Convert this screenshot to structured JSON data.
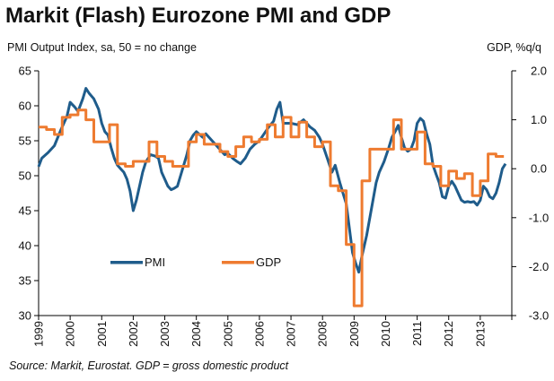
{
  "chart_data": {
    "type": "line",
    "title": "Markit (Flash) Eurozone PMI and GDP",
    "y_left_label": "PMI Output  Index, sa, 50 = no change",
    "y_right_label": "GDP, %q/q",
    "source": "Source: Markit, Eurostat. GDP = gross domestic product",
    "x_ticks": [
      "1999",
      "2000",
      "2001",
      "2002",
      "2003",
      "2004",
      "2005",
      "2006",
      "2007",
      "2008",
      "2009",
      "2010",
      "2011",
      "2012",
      "2013"
    ],
    "y_left_ticks": [
      "65",
      "60",
      "55",
      "50",
      "45",
      "40",
      "35",
      "30"
    ],
    "y_left_range": [
      30,
      65
    ],
    "y_right_ticks": [
      "2.0",
      "1.0",
      "0.0",
      "-1.0",
      "-2.0",
      "-3.0"
    ],
    "y_right_range": [
      -3.0,
      2.0
    ],
    "grid": false,
    "legend_position": "lower-left",
    "series": [
      {
        "name": "PMI",
        "axis": "left",
        "color": "#1F5C8B",
        "points": [
          [
            1999.0,
            51.3
          ],
          [
            1999.1,
            52.5
          ],
          [
            1999.3,
            53.3
          ],
          [
            1999.5,
            54.3
          ],
          [
            1999.7,
            56.5
          ],
          [
            1999.9,
            58.5
          ],
          [
            2000.0,
            60.5
          ],
          [
            2000.15,
            59.8
          ],
          [
            2000.25,
            59.2
          ],
          [
            2000.4,
            61.0
          ],
          [
            2000.5,
            62.5
          ],
          [
            2000.6,
            61.8
          ],
          [
            2000.75,
            61.0
          ],
          [
            2000.9,
            59.5
          ],
          [
            2001.0,
            57.5
          ],
          [
            2001.1,
            56.3
          ],
          [
            2001.2,
            55.8
          ],
          [
            2001.3,
            54.0
          ],
          [
            2001.4,
            52.5
          ],
          [
            2001.5,
            51.5
          ],
          [
            2001.6,
            51.0
          ],
          [
            2001.7,
            50.5
          ],
          [
            2001.8,
            49.5
          ],
          [
            2001.9,
            47.8
          ],
          [
            2002.0,
            45.0
          ],
          [
            2002.1,
            46.5
          ],
          [
            2002.2,
            48.5
          ],
          [
            2002.3,
            50.5
          ],
          [
            2002.4,
            52.0
          ],
          [
            2002.55,
            53.0
          ],
          [
            2002.7,
            52.8
          ],
          [
            2002.8,
            52.5
          ],
          [
            2002.9,
            50.5
          ],
          [
            2003.0,
            49.5
          ],
          [
            2003.1,
            48.5
          ],
          [
            2003.2,
            48.0
          ],
          [
            2003.3,
            48.2
          ],
          [
            2003.4,
            48.5
          ],
          [
            2003.5,
            50.0
          ],
          [
            2003.6,
            51.5
          ],
          [
            2003.7,
            53.0
          ],
          [
            2003.8,
            55.0
          ],
          [
            2003.9,
            55.8
          ],
          [
            2004.0,
            56.3
          ],
          [
            2004.2,
            55.5
          ],
          [
            2004.3,
            56.0
          ],
          [
            2004.5,
            55.0
          ],
          [
            2004.6,
            54.5
          ],
          [
            2004.8,
            53.5
          ],
          [
            2004.9,
            53.0
          ],
          [
            2005.0,
            53.2
          ],
          [
            2005.15,
            52.5
          ],
          [
            2005.3,
            52.0
          ],
          [
            2005.4,
            51.7
          ],
          [
            2005.55,
            52.5
          ],
          [
            2005.7,
            53.8
          ],
          [
            2005.85,
            54.5
          ],
          [
            2006.0,
            55.0
          ],
          [
            2006.15,
            56.0
          ],
          [
            2006.3,
            57.0
          ],
          [
            2006.45,
            57.8
          ],
          [
            2006.55,
            59.5
          ],
          [
            2006.65,
            60.5
          ],
          [
            2006.75,
            57.5
          ],
          [
            2006.9,
            57.5
          ],
          [
            2007.0,
            57.5
          ],
          [
            2007.2,
            57.3
          ],
          [
            2007.4,
            58.0
          ],
          [
            2007.6,
            57.0
          ],
          [
            2007.75,
            56.5
          ],
          [
            2007.9,
            55.5
          ],
          [
            2008.0,
            54.5
          ],
          [
            2008.15,
            52.5
          ],
          [
            2008.3,
            50.5
          ],
          [
            2008.4,
            51.5
          ],
          [
            2008.55,
            49.0
          ],
          [
            2008.65,
            47.5
          ],
          [
            2008.75,
            46.0
          ],
          [
            2008.85,
            42.5
          ],
          [
            2008.95,
            39.0
          ],
          [
            2009.05,
            37.5
          ],
          [
            2009.15,
            36.2
          ],
          [
            2009.25,
            38.5
          ],
          [
            2009.4,
            41.5
          ],
          [
            2009.5,
            44.0
          ],
          [
            2009.6,
            46.5
          ],
          [
            2009.7,
            49.0
          ],
          [
            2009.8,
            50.5
          ],
          [
            2009.95,
            52.0
          ],
          [
            2010.1,
            54.0
          ],
          [
            2010.2,
            55.5
          ],
          [
            2010.3,
            56.3
          ],
          [
            2010.4,
            57.2
          ],
          [
            2010.5,
            55.5
          ],
          [
            2010.6,
            54.0
          ],
          [
            2010.7,
            53.5
          ],
          [
            2010.8,
            53.8
          ],
          [
            2010.9,
            55.0
          ],
          [
            2011.0,
            57.5
          ],
          [
            2011.1,
            58.2
          ],
          [
            2011.2,
            57.8
          ],
          [
            2011.3,
            56.0
          ],
          [
            2011.4,
            54.5
          ],
          [
            2011.5,
            51.5
          ],
          [
            2011.6,
            50.2
          ],
          [
            2011.7,
            49.0
          ],
          [
            2011.8,
            47.0
          ],
          [
            2011.9,
            46.8
          ],
          [
            2012.0,
            48.5
          ],
          [
            2012.1,
            49.2
          ],
          [
            2012.2,
            48.5
          ],
          [
            2012.3,
            47.5
          ],
          [
            2012.4,
            46.5
          ],
          [
            2012.5,
            46.2
          ],
          [
            2012.6,
            46.3
          ],
          [
            2012.7,
            46.2
          ],
          [
            2012.8,
            46.3
          ],
          [
            2012.9,
            45.8
          ],
          [
            2013.0,
            46.5
          ],
          [
            2013.1,
            48.5
          ],
          [
            2013.2,
            48.0
          ],
          [
            2013.3,
            47.0
          ],
          [
            2013.4,
            46.7
          ],
          [
            2013.5,
            47.5
          ],
          [
            2013.6,
            49.0
          ],
          [
            2013.7,
            51.0
          ],
          [
            2013.8,
            51.7
          ]
        ]
      },
      {
        "name": "GDP",
        "axis": "right",
        "color": "#EE7B30",
        "points": [
          [
            1999.0,
            0.85
          ],
          [
            1999.25,
            0.8
          ],
          [
            1999.5,
            0.7
          ],
          [
            1999.75,
            1.05
          ],
          [
            2000.0,
            1.1
          ],
          [
            2000.25,
            1.2
          ],
          [
            2000.5,
            1.0
          ],
          [
            2000.75,
            0.55
          ],
          [
            2001.0,
            0.55
          ],
          [
            2001.25,
            0.9
          ],
          [
            2001.5,
            0.1
          ],
          [
            2001.75,
            0.05
          ],
          [
            2002.0,
            0.15
          ],
          [
            2002.25,
            0.15
          ],
          [
            2002.5,
            0.55
          ],
          [
            2002.75,
            0.25
          ],
          [
            2003.0,
            0.15
          ],
          [
            2003.25,
            0.05
          ],
          [
            2003.5,
            0.05
          ],
          [
            2003.75,
            0.55
          ],
          [
            2004.0,
            0.7
          ],
          [
            2004.25,
            0.5
          ],
          [
            2004.5,
            0.5
          ],
          [
            2004.75,
            0.35
          ],
          [
            2005.0,
            0.25
          ],
          [
            2005.25,
            0.45
          ],
          [
            2005.5,
            0.65
          ],
          [
            2005.75,
            0.55
          ],
          [
            2006.0,
            0.6
          ],
          [
            2006.25,
            0.9
          ],
          [
            2006.5,
            0.65
          ],
          [
            2006.75,
            1.05
          ],
          [
            2007.0,
            0.65
          ],
          [
            2007.25,
            0.95
          ],
          [
            2007.5,
            0.65
          ],
          [
            2007.75,
            0.45
          ],
          [
            2008.0,
            0.55
          ],
          [
            2008.25,
            -0.35
          ],
          [
            2008.5,
            -0.45
          ],
          [
            2008.75,
            -1.55
          ],
          [
            2009.0,
            -2.8
          ],
          [
            2009.25,
            -0.25
          ],
          [
            2009.5,
            0.4
          ],
          [
            2009.75,
            0.4
          ],
          [
            2010.0,
            0.4
          ],
          [
            2010.25,
            1.0
          ],
          [
            2010.5,
            0.4
          ],
          [
            2010.75,
            0.4
          ],
          [
            2011.0,
            0.75
          ],
          [
            2011.25,
            0.1
          ],
          [
            2011.5,
            0.05
          ],
          [
            2011.75,
            -0.35
          ],
          [
            2012.0,
            -0.05
          ],
          [
            2012.25,
            -0.2
          ],
          [
            2012.5,
            -0.1
          ],
          [
            2012.75,
            -0.55
          ],
          [
            2013.0,
            -0.25
          ],
          [
            2013.25,
            0.3
          ],
          [
            2013.5,
            0.25
          ]
        ]
      }
    ]
  }
}
